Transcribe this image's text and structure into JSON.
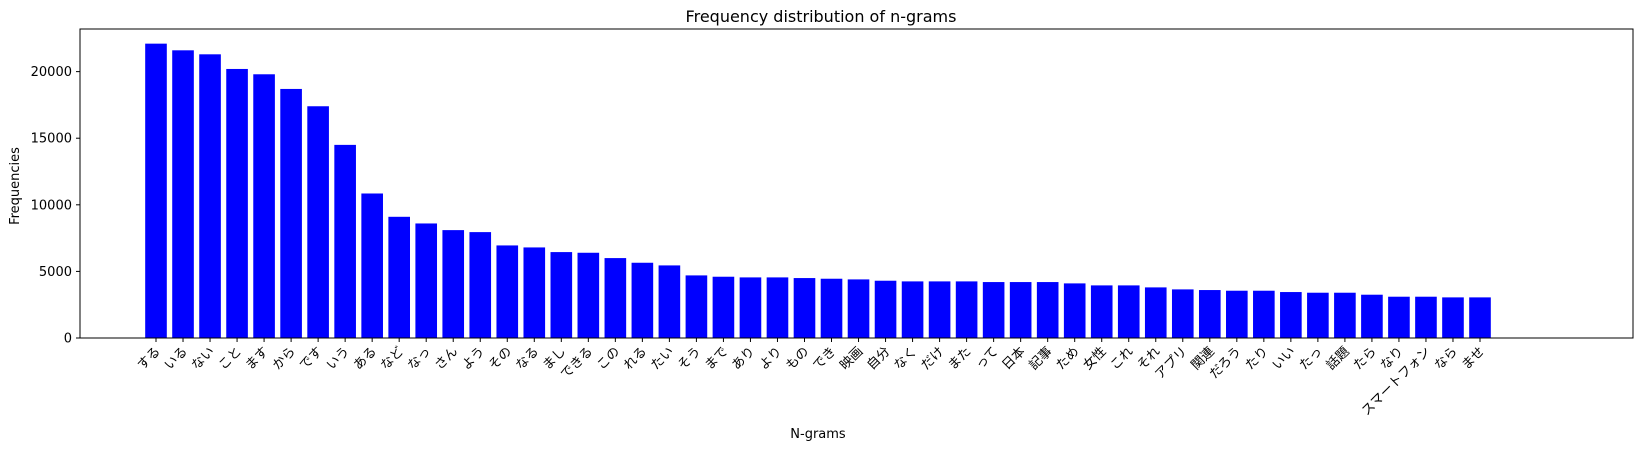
{
  "chart_data": {
    "type": "bar",
    "title": "Frequency distribution of n-grams",
    "xlabel": "N-grams",
    "ylabel": "Frequencies",
    "ylim": [
      0,
      23200
    ],
    "yticks": [
      0,
      5000,
      10000,
      15000,
      20000
    ],
    "bar_color": "#0000ff",
    "grid": false,
    "categories": [
      "する",
      "いる",
      "ない",
      "こと",
      "ます",
      "から",
      "です",
      "いう",
      "ある",
      "など",
      "なっ",
      "さん",
      "よう",
      "その",
      "なる",
      "まし",
      "できる",
      "この",
      "れる",
      "たい",
      "そう",
      "まで",
      "あり",
      "より",
      "もの",
      "でき",
      "映画",
      "自分",
      "なく",
      "だけ",
      "また",
      "って",
      "日本",
      "記事",
      "ため",
      "女性",
      "これ",
      "それ",
      "アプリ",
      "関連",
      "だろう",
      "たり",
      "いい",
      "たっ",
      "話題",
      "たら",
      "なり",
      "スマートフォン",
      "なら",
      "ませ"
    ],
    "values": [
      22100,
      21600,
      21300,
      20200,
      19800,
      18700,
      17400,
      14500,
      10850,
      9100,
      8600,
      8100,
      7950,
      6950,
      6800,
      6450,
      6400,
      6000,
      5650,
      5450,
      4700,
      4600,
      4550,
      4550,
      4500,
      4450,
      4400,
      4300,
      4250,
      4250,
      4250,
      4200,
      4200,
      4200,
      4100,
      3950,
      3950,
      3800,
      3650,
      3600,
      3550,
      3550,
      3450,
      3400,
      3400,
      3250,
      3100,
      3100,
      3050,
      3050
    ]
  }
}
